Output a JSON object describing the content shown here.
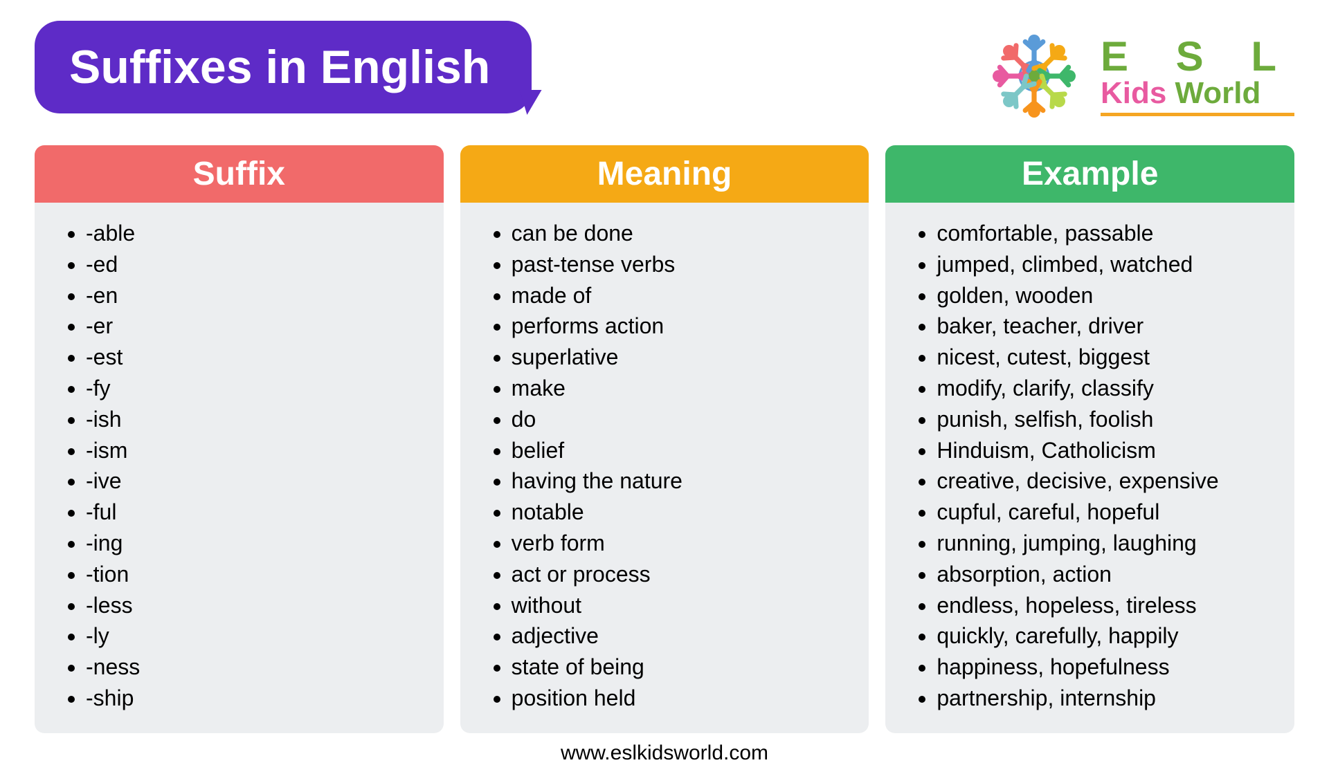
{
  "title": "Suffixes in English",
  "logo": {
    "esl": "E S L",
    "kids": "Kids",
    "world": " World"
  },
  "columns": [
    {
      "header": "Suffix",
      "header_bg": "#f16a6a",
      "items": [
        "-able",
        "-ed",
        "-en",
        "-er",
        "-est",
        "-fy",
        "-ish",
        "-ism",
        "-ive",
        "-ful",
        "-ing",
        "-tion",
        "-less",
        "-ly",
        "-ness",
        "-ship"
      ]
    },
    {
      "header": "Meaning",
      "header_bg": "#f5a915",
      "items": [
        "can be done",
        "past-tense verbs",
        "made of",
        "performs action",
        "superlative",
        "make",
        "do",
        "belief",
        "having the nature",
        "notable",
        "verb form",
        "act or process",
        "without",
        "adjective",
        "state of being",
        "position held"
      ]
    },
    {
      "header": "Example",
      "header_bg": "#3eb76a",
      "items": [
        "comfortable, passable",
        "jumped, climbed, watched",
        "golden, wooden",
        "baker, teacher, driver",
        "nicest, cutest, biggest",
        "modify, clarify, classify",
        "punish, selfish, foolish",
        "Hinduism, Catholicism",
        "creative, decisive, expensive",
        "cupful, careful, hopeful",
        "running, jumping, laughing",
        "absorption, action",
        "endless, hopeless, tireless",
        "quickly, carefully, happily",
        "happiness, hopefulness",
        "partnership, internship"
      ]
    }
  ],
  "footer": "www.eslkidsworld.com",
  "colors": {
    "title_bg": "#5e2bc7",
    "title_text": "#ffffff",
    "body_bg": "#eceef0",
    "page_bg": "#ffffff",
    "logo_green": "#6dab3c",
    "logo_pink": "#e85aa0",
    "logo_underline": "#f5a623"
  },
  "figures": [
    {
      "color": "#e85aa0",
      "angle": -90
    },
    {
      "color": "#f16a6a",
      "angle": -45
    },
    {
      "color": "#5a9bd8",
      "angle": 0
    },
    {
      "color": "#f5a915",
      "angle": 45
    },
    {
      "color": "#3eb76a",
      "angle": 90
    },
    {
      "color": "#b8d94a",
      "angle": 135
    },
    {
      "color": "#f7941d",
      "angle": 180
    },
    {
      "color": "#7cc7c7",
      "angle": 225
    }
  ]
}
